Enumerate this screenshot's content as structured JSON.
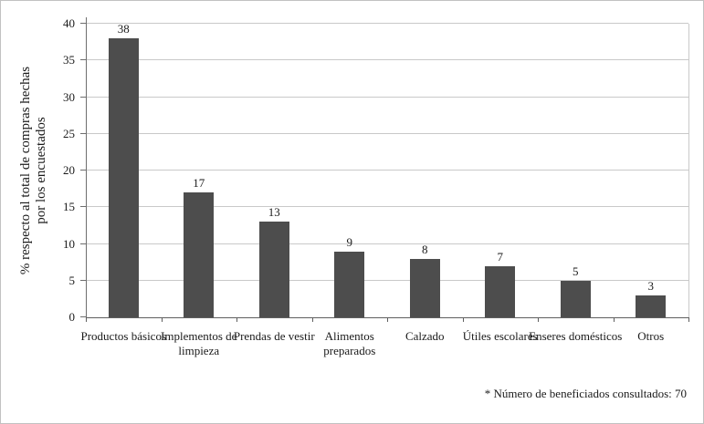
{
  "chart_data": {
    "type": "bar",
    "categories": [
      "Productos básicos",
      "Implementos de limpieza",
      "Prendas de vestir",
      "Alimentos preparados",
      "Calzado",
      "Útiles escolares",
      "Enseres domésticos",
      "Otros"
    ],
    "values": [
      38,
      17,
      13,
      9,
      8,
      7,
      5,
      3
    ],
    "title": "",
    "xlabel": "",
    "ylabel": "% respecto al total de compras hechas por los encuestados",
    "ylabel_lines": [
      "% respecto al total de compras hechas",
      "por los encuestados"
    ],
    "ylim": [
      0,
      40
    ],
    "yticks": [
      0,
      5,
      10,
      15,
      20,
      25,
      30,
      35,
      40
    ],
    "grid": true,
    "legend": false,
    "bar_color": "#4d4d4d",
    "gridline_color": "#c9c9c9",
    "axis_color": "#5f5f5f"
  },
  "footnote": "* Número de beneficiados consultados: 70"
}
